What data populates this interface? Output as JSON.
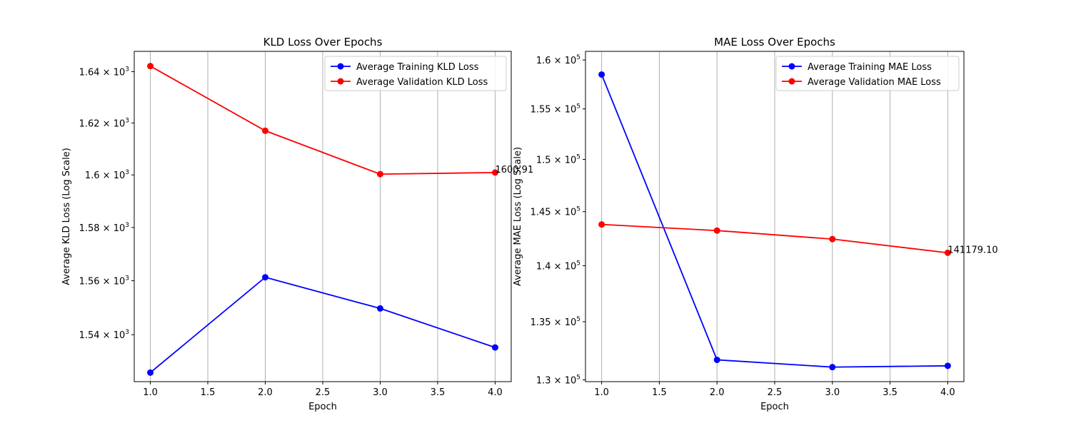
{
  "chart_data": [
    {
      "type": "line",
      "title": "KLD Loss Over Epochs",
      "xlabel": "Epoch",
      "ylabel": "Average KLD Loss (Log Scale)",
      "yscale": "log",
      "grid": "x-only",
      "legend_position": "top-right",
      "x": [
        1.0,
        2.0,
        3.0,
        4.0
      ],
      "xlim": [
        0.86,
        4.14
      ],
      "ylim": [
        1522.8,
        1648.0
      ],
      "xticks": [
        1.0,
        1.5,
        2.0,
        2.5,
        3.0,
        3.5,
        4.0
      ],
      "xtick_labels": [
        "1.0",
        "1.5",
        "2.0",
        "2.5",
        "3.0",
        "3.5",
        "4.0"
      ],
      "yticks": [
        {
          "value": 1540,
          "mantissa": "1.54",
          "base": "10",
          "exponent": "3"
        },
        {
          "value": 1560,
          "mantissa": "1.56",
          "base": "10",
          "exponent": "3"
        },
        {
          "value": 1580,
          "mantissa": "1.58",
          "base": "10",
          "exponent": "3"
        },
        {
          "value": 1600,
          "mantissa": "1.6",
          "base": "10",
          "exponent": "3"
        },
        {
          "value": 1620,
          "mantissa": "1.62",
          "base": "10",
          "exponent": "3"
        },
        {
          "value": 1640,
          "mantissa": "1.64",
          "base": "10",
          "exponent": "3"
        }
      ],
      "series": [
        {
          "name": "Average Training KLD Loss",
          "color": "#0000ff",
          "values": [
            1526.1,
            1561.3,
            1549.7,
            1535.3
          ]
        },
        {
          "name": "Average Validation KLD Loss",
          "color": "#ff0000",
          "values": [
            1642.2,
            1617.0,
            1600.3,
            1600.91
          ]
        }
      ],
      "annotations": [
        {
          "text": "1600.91",
          "x": 4.0,
          "y": 1600.91
        }
      ]
    },
    {
      "type": "line",
      "title": "MAE Loss Over Epochs",
      "xlabel": "Epoch",
      "ylabel": "Average MAE Loss (Log Scale)",
      "yscale": "log",
      "grid": "x-only",
      "legend_position": "top-right",
      "x": [
        1.0,
        2.0,
        3.0,
        4.0
      ],
      "xlim": [
        0.86,
        4.14
      ],
      "ylim": [
        129850,
        160900
      ],
      "xticks": [
        1.0,
        1.5,
        2.0,
        2.5,
        3.0,
        3.5,
        4.0
      ],
      "xtick_labels": [
        "1.0",
        "1.5",
        "2.0",
        "2.5",
        "3.0",
        "3.5",
        "4.0"
      ],
      "yticks": [
        {
          "value": 130000,
          "mantissa": "1.3",
          "base": "10",
          "exponent": "5"
        },
        {
          "value": 135000,
          "mantissa": "1.35",
          "base": "10",
          "exponent": "5"
        },
        {
          "value": 140000,
          "mantissa": "1.4",
          "base": "10",
          "exponent": "5"
        },
        {
          "value": 145000,
          "mantissa": "1.45",
          "base": "10",
          "exponent": "5"
        },
        {
          "value": 150000,
          "mantissa": "1.5",
          "base": "10",
          "exponent": "5"
        },
        {
          "value": 155000,
          "mantissa": "1.55",
          "base": "10",
          "exponent": "5"
        },
        {
          "value": 160000,
          "mantissa": "1.6",
          "base": "10",
          "exponent": "5"
        }
      ],
      "series": [
        {
          "name": "Average Training MAE Loss",
          "color": "#0000ff",
          "values": [
            158500,
            131700,
            131080,
            131190
          ]
        },
        {
          "name": "Average Validation MAE Loss",
          "color": "#ff0000",
          "values": [
            143800,
            143230,
            142440,
            141179.1
          ]
        }
      ],
      "annotations": [
        {
          "text": "141179.10",
          "x": 4.0,
          "y": 141179.1
        }
      ]
    }
  ]
}
